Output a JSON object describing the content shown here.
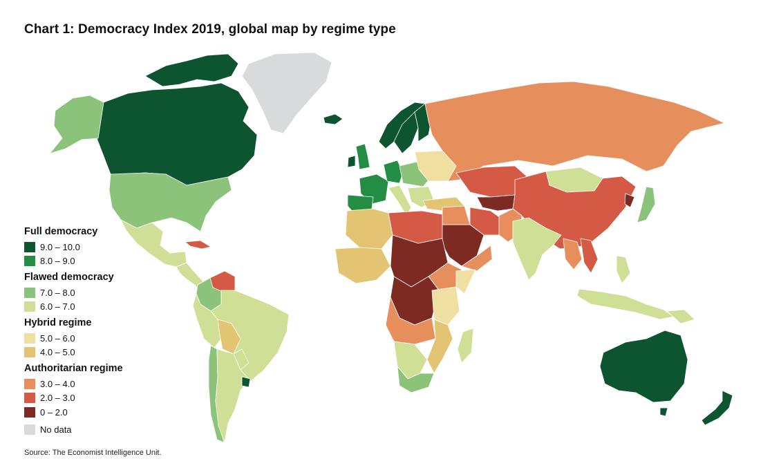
{
  "title": "Chart 1: Democracy Index 2019, global map by regime type",
  "source": "Source: The Economist Intelligence Unit.",
  "colors": {
    "c9_10": "#0d5531",
    "c8_9": "#238d43",
    "c7_8": "#8bc37a",
    "c6_7": "#cfe096",
    "c5_6": "#efe0a2",
    "c4_5": "#e3c473",
    "c3_4": "#e68f5c",
    "c2_3": "#d45a46",
    "c0_2": "#7d2a22",
    "nodata": "#d9dadb",
    "ocean": "#ffffff",
    "border": "#ffffff",
    "coast": "#7aa3c9"
  },
  "legend": {
    "groups": [
      {
        "heading": "Full democracy",
        "items": [
          {
            "label": "9.0 – 10.0",
            "color": "#0d5531"
          },
          {
            "label": "8.0 – 9.0",
            "color": "#238d43"
          }
        ]
      },
      {
        "heading": "Flawed democracy",
        "items": [
          {
            "label": "7.0 – 8.0",
            "color": "#8bc37a"
          },
          {
            "label": "6.0 – 7.0",
            "color": "#cfe096"
          }
        ]
      },
      {
        "heading": "Hybrid regime",
        "items": [
          {
            "label": "5.0 – 6.0",
            "color": "#efe0a2"
          },
          {
            "label": "4.0 – 5.0",
            "color": "#e3c473"
          }
        ]
      },
      {
        "heading": "Authoritarian regime",
        "items": [
          {
            "label": "3.0 – 4.0",
            "color": "#e68f5c"
          },
          {
            "label": "2.0 – 3.0",
            "color": "#d45a46"
          },
          {
            "label": "0 – 2.0",
            "color": "#7d2a22"
          }
        ]
      }
    ],
    "nodata": {
      "label": "No data",
      "color": "#d9dadb"
    }
  }
}
